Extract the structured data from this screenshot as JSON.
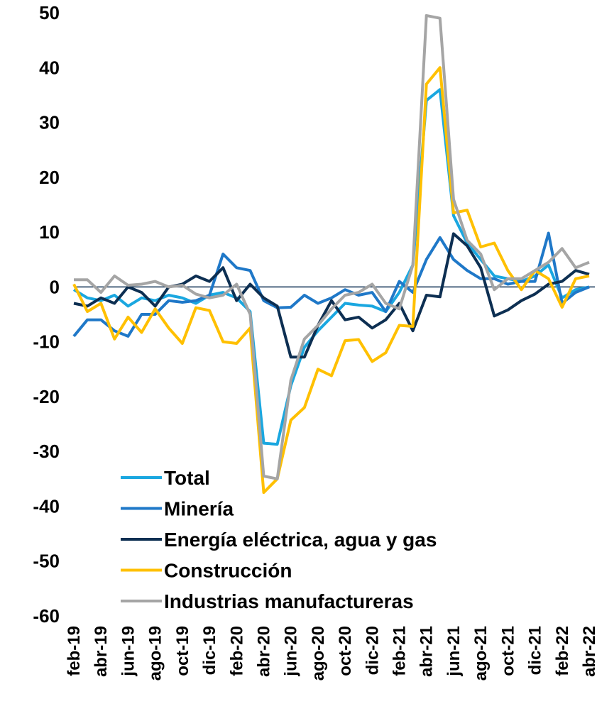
{
  "chart_data": {
    "type": "line",
    "categories": [
      "feb-19",
      null,
      "abr-19",
      null,
      "jun-19",
      null,
      "ago-19",
      null,
      "oct-19",
      null,
      "dic-19",
      null,
      "feb-20",
      null,
      "abr-20",
      null,
      "jun-20",
      null,
      "ago-20",
      null,
      "oct-20",
      null,
      "dic-20",
      null,
      "feb-21",
      null,
      "abr-21",
      null,
      "jun-21",
      null,
      "ago-21",
      null,
      "oct-21",
      null,
      "dic-21",
      null,
      "feb-22",
      null,
      "abr-22"
    ],
    "series": [
      {
        "name": "Total",
        "color": "#1aa7e0",
        "values": [
          -0.5,
          -2,
          -2.5,
          -1.5,
          -3.5,
          -2,
          -2.5,
          -1.5,
          -2,
          -3,
          -1.5,
          -1,
          -2,
          -4.5,
          -28.5,
          -28.7,
          -18,
          -11,
          -8,
          -5.5,
          -3,
          -3.3,
          -3.5,
          -4.5,
          -1,
          4,
          34,
          36,
          13,
          8,
          5,
          2,
          1.5,
          1,
          2,
          4,
          -2,
          -0.5,
          0
        ]
      },
      {
        "name": "Minería",
        "color": "#1f78c8",
        "values": [
          -9,
          -6,
          -6,
          -8,
          -9,
          -5,
          -5,
          -2.5,
          -2.8,
          -2.5,
          -1.5,
          6,
          3.5,
          3,
          -2.5,
          -3.8,
          -3.7,
          -1.5,
          -3,
          -2,
          -0.5,
          -1.5,
          -1,
          -4.5,
          1,
          -1,
          5,
          9,
          5,
          3,
          1.5,
          1.5,
          0.5,
          1,
          1,
          9.8,
          -3,
          -1,
          0
        ]
      },
      {
        "name": "Energía eléctrica, agua y gas",
        "color": "#0d2f52",
        "values": [
          -3,
          -3.5,
          -2,
          -3,
          0,
          -1,
          -3.5,
          0,
          0.5,
          2,
          1,
          3.5,
          -2.5,
          0.5,
          -2,
          -3.5,
          -12.8,
          -12.8,
          -7,
          -2.5,
          -6,
          -5.5,
          -7.5,
          -6,
          -3,
          -8,
          -1.5,
          -1.8,
          9.7,
          7.5,
          3.5,
          -5.3,
          -4.2,
          -2.5,
          -1.3,
          0.5,
          1,
          3,
          2.3
        ]
      },
      {
        "name": "Construcción",
        "color": "#ffc000",
        "values": [
          0.5,
          -4.5,
          -3,
          -9.5,
          -5.5,
          -8.3,
          -4,
          -7.5,
          -10.3,
          -3.8,
          -4.3,
          -10,
          -10.3,
          -7.5,
          -37.5,
          -35,
          -24.3,
          -22,
          -15,
          -16.2,
          -9.8,
          -9.6,
          -13.6,
          -12,
          -7,
          -7.2,
          37,
          40,
          13.5,
          14,
          7.3,
          8,
          3,
          -0.5,
          3,
          1.5,
          -3.7,
          1.5,
          2
        ]
      },
      {
        "name": "Industrias manufactureras",
        "color": "#a5a5a5",
        "values": [
          1.3,
          1.3,
          -1,
          2,
          0.3,
          0.5,
          1,
          0,
          0.3,
          -1.3,
          -2,
          -1.5,
          0.5,
          -5,
          -34.5,
          -35,
          -17,
          -9.5,
          -7,
          -4,
          -1.5,
          -1,
          0.5,
          -3,
          -4,
          4,
          49.5,
          49,
          16,
          8.5,
          6,
          -0.5,
          1.5,
          1.5,
          3,
          4.5,
          7,
          3.5,
          4.5
        ]
      }
    ],
    "ylim": [
      -60,
      50
    ],
    "yticks": [
      -60,
      -50,
      -40,
      -30,
      -20,
      -10,
      0,
      10,
      20,
      30,
      40,
      50
    ],
    "grid": false,
    "legend": "bottom-left"
  }
}
